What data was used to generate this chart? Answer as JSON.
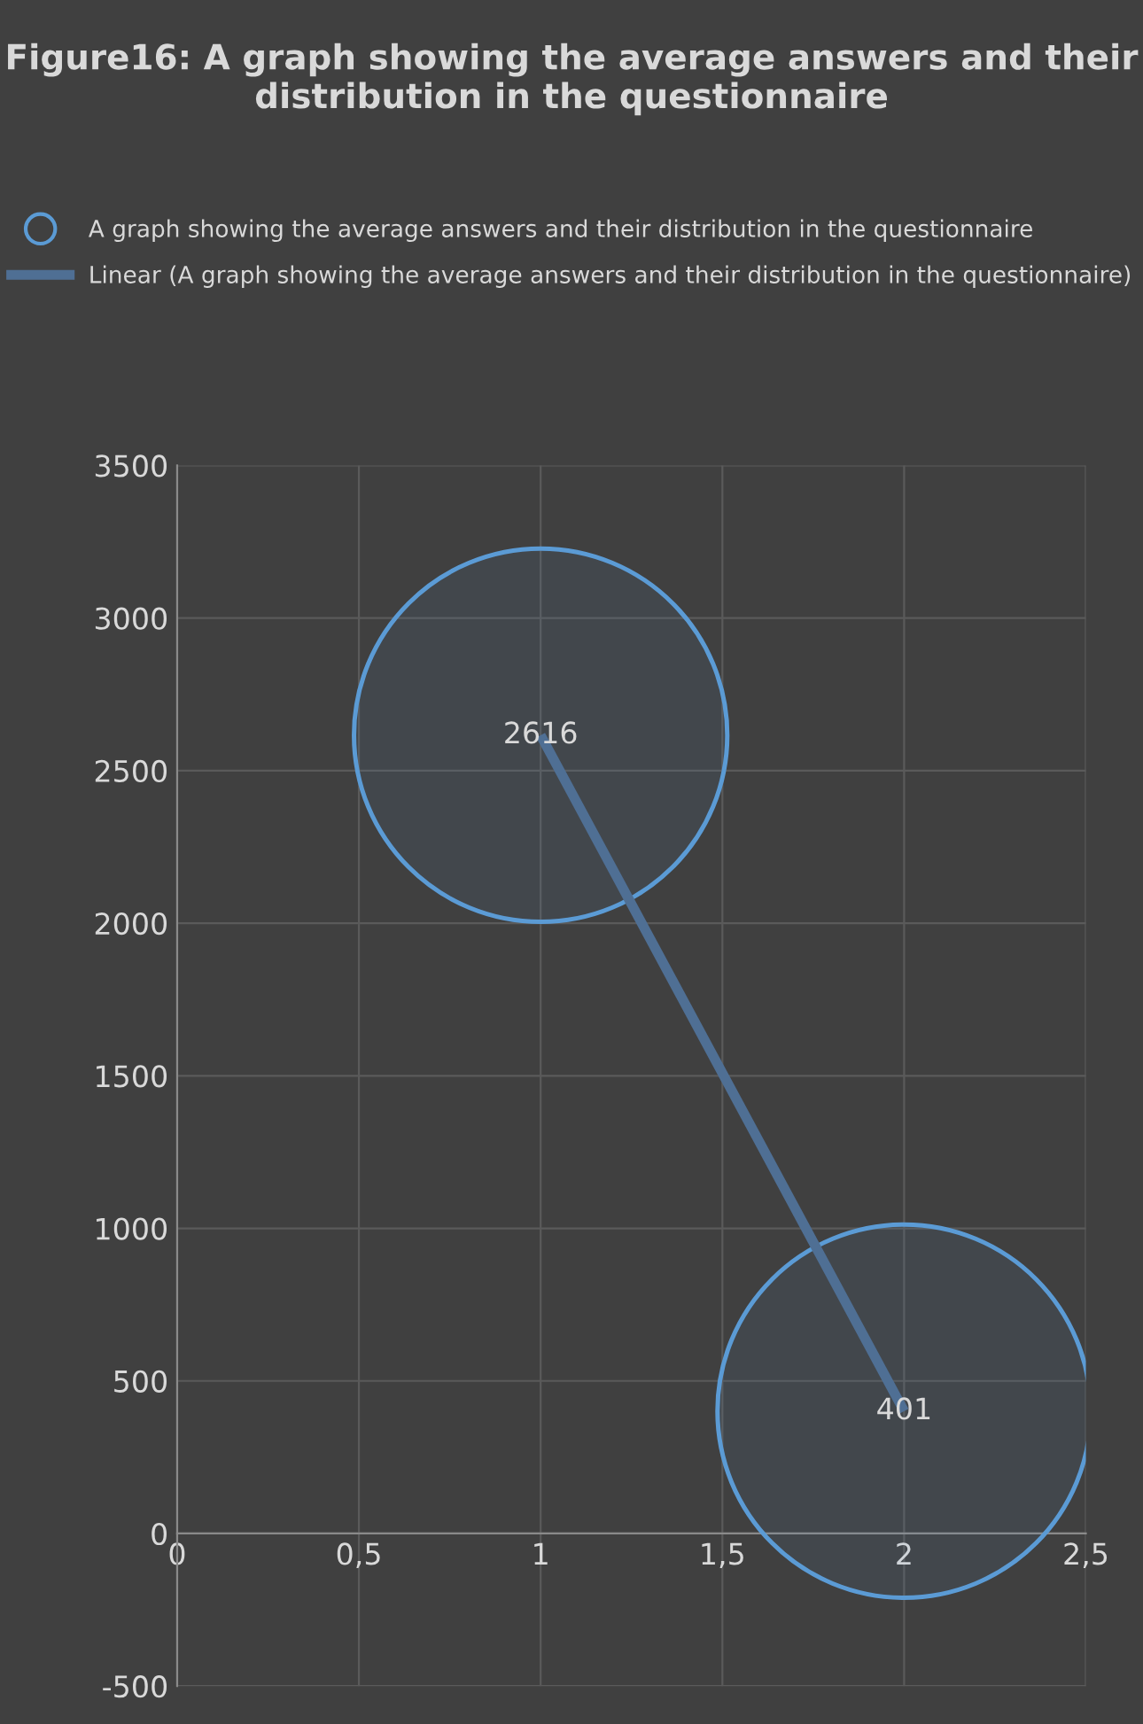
{
  "chart_data": {
    "type": "bubble",
    "title": "Figure16: A graph showing the average answers and their distribution in the questionnaire",
    "x": [
      1,
      2
    ],
    "series": [
      {
        "name": "A graph showing the average answers and their distribution in the questionnaire",
        "color": "#5b9bd5",
        "values": [
          2616,
          401
        ],
        "sizes": [
          1,
          1
        ],
        "value_labels": [
          "2616",
          "401"
        ]
      },
      {
        "name": "Linear (A graph showing the average answers and their distribution in the questionnaire)",
        "type": "line",
        "color": "#4f6f94",
        "values": [
          2616,
          401
        ]
      }
    ],
    "xlim": [
      0,
      2.5
    ],
    "xticks": [
      0,
      {
        "value": 0.5,
        "label": "0,5"
      },
      1,
      {
        "value": 1.5,
        "label": "1,5"
      },
      2,
      {
        "value": 2.5,
        "label": "2,5"
      }
    ],
    "ylim": [
      -500,
      3500
    ],
    "yticks": [
      -500,
      0,
      500,
      1000,
      1500,
      2000,
      2500,
      3000,
      3500
    ],
    "grid": true,
    "legend": "top"
  }
}
